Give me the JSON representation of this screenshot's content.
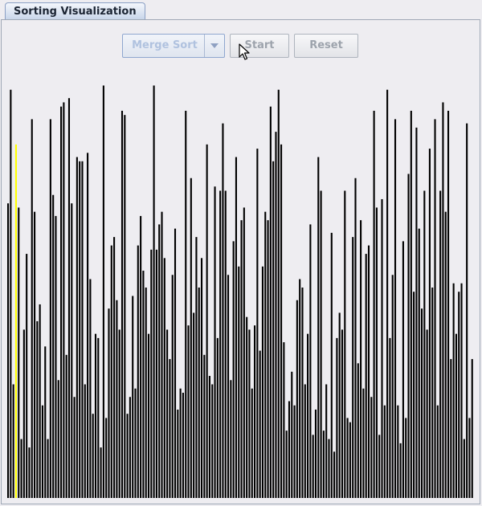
{
  "tab": {
    "title": "Sorting Visualization"
  },
  "controls": {
    "algorithm": {
      "value": "Merge Sort"
    },
    "start_label": "Start",
    "reset_label": "Reset"
  },
  "colors": {
    "bar": "#000000",
    "highlight": "#ffff00",
    "accent": "#8fa7cf"
  },
  "chart_data": {
    "type": "bar",
    "ylim": [
      0,
      100
    ],
    "highlight_index": 3,
    "values": [
      70,
      97,
      27,
      84,
      69,
      14,
      40,
      58,
      12,
      90,
      68,
      42,
      46,
      22,
      36,
      14,
      90,
      72,
      67,
      28,
      93,
      94,
      34,
      95,
      70,
      24,
      81,
      80,
      80,
      27,
      82,
      52,
      20,
      39,
      38,
      12,
      98,
      19,
      45,
      60,
      62,
      47,
      40,
      92,
      91,
      20,
      24,
      48,
      26,
      60,
      67,
      54,
      50,
      39,
      59,
      98,
      59,
      65,
      68,
      57,
      40,
      33,
      53,
      64,
      21,
      26,
      25,
      92,
      41,
      76,
      44,
      62,
      50,
      57,
      34,
      84,
      29,
      27,
      74,
      38,
      73,
      89,
      73,
      53,
      28,
      61,
      81,
      55,
      66,
      69,
      43,
      40,
      26,
      41,
      83,
      35,
      55,
      68,
      66,
      93,
      80,
      87,
      97,
      84,
      37,
      16,
      23,
      30,
      22,
      47,
      52,
      50,
      27,
      39,
      65,
      15,
      21,
      81,
      73,
      16,
      27,
      14,
      63,
      11,
      38,
      44,
      40,
      73,
      19,
      18,
      62,
      76,
      32,
      66,
      26,
      58,
      60,
      24,
      92,
      69,
      15,
      71,
      22,
      97,
      38,
      53,
      90,
      22,
      13,
      61,
      19,
      77,
      92,
      49,
      88,
      64,
      45,
      73,
      40,
      83,
      50,
      90,
      22,
      73,
      94,
      68,
      92,
      33,
      51,
      39,
      49,
      51,
      14,
      89,
      19,
      33
    ]
  }
}
